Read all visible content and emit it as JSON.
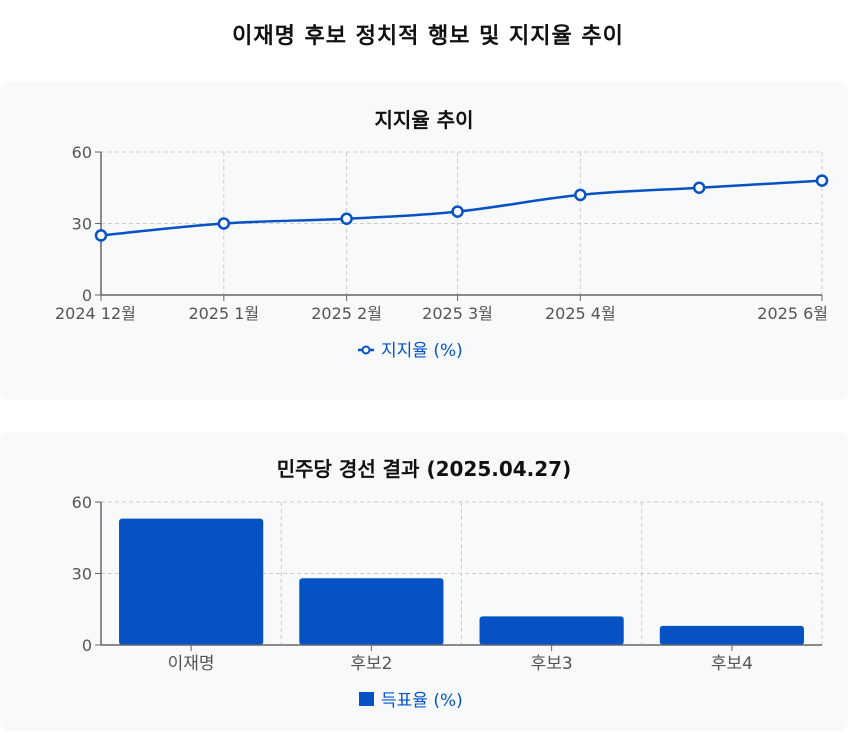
{
  "page": {
    "title": "이재명 후보 정치적 행보 및 지지율 추이"
  },
  "colors": {
    "series": "#0652c5",
    "grid": "#cccccc",
    "axis": "#666666",
    "tick_text": "#555555",
    "card_bg": "#f7f9fb"
  },
  "chart_data": [
    {
      "type": "line",
      "title": "지지율 추이",
      "xlabel": "",
      "ylabel": "",
      "x_axis": "time",
      "x": [
        "2024-12-01",
        "2025-01-01",
        "2025-02-01",
        "2025-03-01",
        "2025-04-01",
        "2025-05-01",
        "2025-06-01"
      ],
      "x_ticks": [
        "2024-12-01",
        "2025-01-01",
        "2025-02-01",
        "2025-03-01",
        "2025-04-01",
        "2025-06-01"
      ],
      "x_tick_labels": [
        "2024 12월",
        "2025 1월",
        "2025 2월",
        "2025 3월",
        "2025 4월",
        "2025 6월"
      ],
      "series": [
        {
          "name": "지지율 (%)",
          "values": [
            25,
            30,
            32,
            35,
            42,
            45,
            48
          ]
        }
      ],
      "ylim": [
        0,
        60
      ],
      "y_ticks": [
        0,
        30,
        60
      ],
      "grid": true,
      "legend": "bottom"
    },
    {
      "type": "bar",
      "title": "민주당 경선 결과 (2025.04.27)",
      "xlabel": "",
      "ylabel": "",
      "categories": [
        "이재명",
        "후보2",
        "후보3",
        "후보4"
      ],
      "series": [
        {
          "name": "득표율 (%)",
          "values": [
            53,
            28,
            12,
            8
          ]
        }
      ],
      "ylim": [
        0,
        60
      ],
      "y_ticks": [
        0,
        30,
        60
      ],
      "grid": true,
      "legend": "bottom"
    }
  ]
}
